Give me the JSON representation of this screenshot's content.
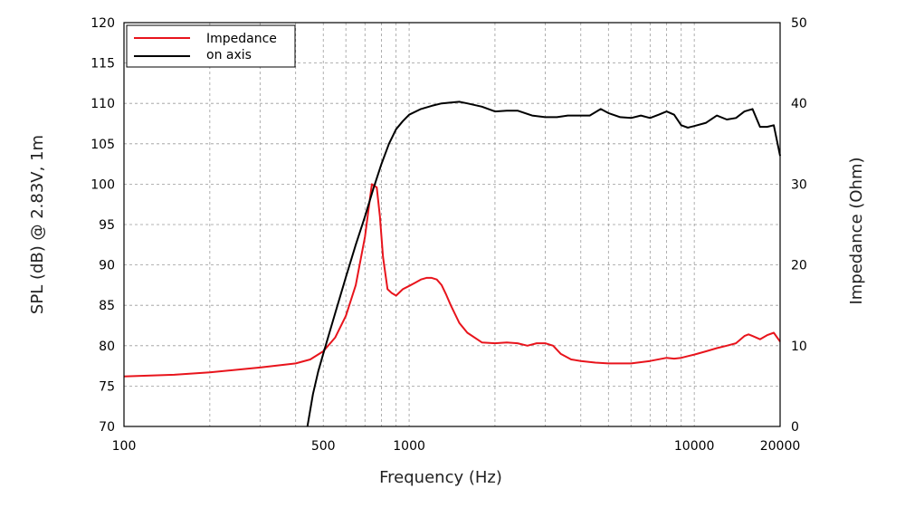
{
  "chart_data": {
    "type": "line",
    "xlabel": "Frequency (Hz)",
    "ylabel_left": "SPL (dB) @ 2.83V, 1m",
    "ylabel_right": "Impedance (Ohm)",
    "x_scale": "log",
    "xlim": [
      100,
      20000
    ],
    "ylim_left": [
      70,
      120
    ],
    "ylim_right": [
      0,
      50
    ],
    "x_ticks": [
      100,
      500,
      1000,
      10000,
      20000
    ],
    "x_tick_labels": [
      "100",
      "500",
      "1000",
      "10000",
      "20000"
    ],
    "y_left_ticks": [
      70,
      75,
      80,
      85,
      90,
      95,
      100,
      105,
      110,
      115,
      120
    ],
    "y_left_tick_labels": [
      "70",
      "75",
      "80",
      "85",
      "90",
      "95",
      "100",
      "105",
      "110",
      "115",
      "120"
    ],
    "y_right_ticks": [
      0,
      10,
      20,
      30,
      40,
      50
    ],
    "y_right_tick_labels": [
      "0",
      "10",
      "20",
      "30",
      "40",
      "50"
    ],
    "grid": true,
    "legend_position": "top-left",
    "series": [
      {
        "name": "Impedance",
        "axis": "right",
        "color": "#e8141c",
        "x": [
          100,
          150,
          200,
          300,
          400,
          450,
          500,
          550,
          600,
          650,
          700,
          740,
          770,
          790,
          810,
          840,
          870,
          900,
          950,
          1000,
          1050,
          1100,
          1150,
          1200,
          1250,
          1300,
          1350,
          1400,
          1500,
          1600,
          1800,
          2000,
          2200,
          2400,
          2600,
          2800,
          3000,
          3200,
          3400,
          3700,
          4000,
          4500,
          5000,
          6000,
          7000,
          8000,
          8500,
          9000,
          10000,
          11000,
          12000,
          13000,
          14000,
          15000,
          15500,
          16000,
          17000,
          18000,
          19000,
          20000
        ],
        "y": [
          6.2,
          6.4,
          6.7,
          7.3,
          7.8,
          8.3,
          9.3,
          11.0,
          13.7,
          17.5,
          23.5,
          30.0,
          29.6,
          26.0,
          21.0,
          17.0,
          16.5,
          16.2,
          17.0,
          17.4,
          17.8,
          18.2,
          18.4,
          18.4,
          18.2,
          17.5,
          16.3,
          15.0,
          12.8,
          11.6,
          10.4,
          10.3,
          10.4,
          10.3,
          10.0,
          10.3,
          10.3,
          10.0,
          9.0,
          8.3,
          8.1,
          7.9,
          7.8,
          7.8,
          8.1,
          8.5,
          8.4,
          8.5,
          8.9,
          9.3,
          9.7,
          10.0,
          10.3,
          11.2,
          11.4,
          11.2,
          10.8,
          11.3,
          11.6,
          10.5
        ]
      },
      {
        "name": "on axis",
        "axis": "left",
        "color": "#000000",
        "x": [
          440,
          460,
          480,
          500,
          550,
          600,
          650,
          700,
          750,
          800,
          850,
          900,
          950,
          1000,
          1100,
          1200,
          1300,
          1400,
          1500,
          1600,
          1800,
          2000,
          2200,
          2400,
          2700,
          3000,
          3300,
          3600,
          4000,
          4300,
          4700,
          5000,
          5500,
          6000,
          6500,
          7000,
          7500,
          8000,
          8500,
          9000,
          9500,
          10000,
          11000,
          12000,
          13000,
          14000,
          15000,
          16000,
          17000,
          18000,
          19000,
          20000
        ],
        "y": [
          70.0,
          74.0,
          76.8,
          79.0,
          84.0,
          88.5,
          92.5,
          96.0,
          99.5,
          102.5,
          105.0,
          106.8,
          107.8,
          108.6,
          109.3,
          109.7,
          110.0,
          110.1,
          110.2,
          110.0,
          109.6,
          109.0,
          109.1,
          109.1,
          108.5,
          108.3,
          108.3,
          108.5,
          108.5,
          108.5,
          109.3,
          108.8,
          108.3,
          108.2,
          108.5,
          108.2,
          108.6,
          109.0,
          108.6,
          107.3,
          107.0,
          107.2,
          107.6,
          108.5,
          108.0,
          108.2,
          109.0,
          109.3,
          107.1,
          107.1,
          107.3,
          103.5
        ]
      }
    ]
  }
}
